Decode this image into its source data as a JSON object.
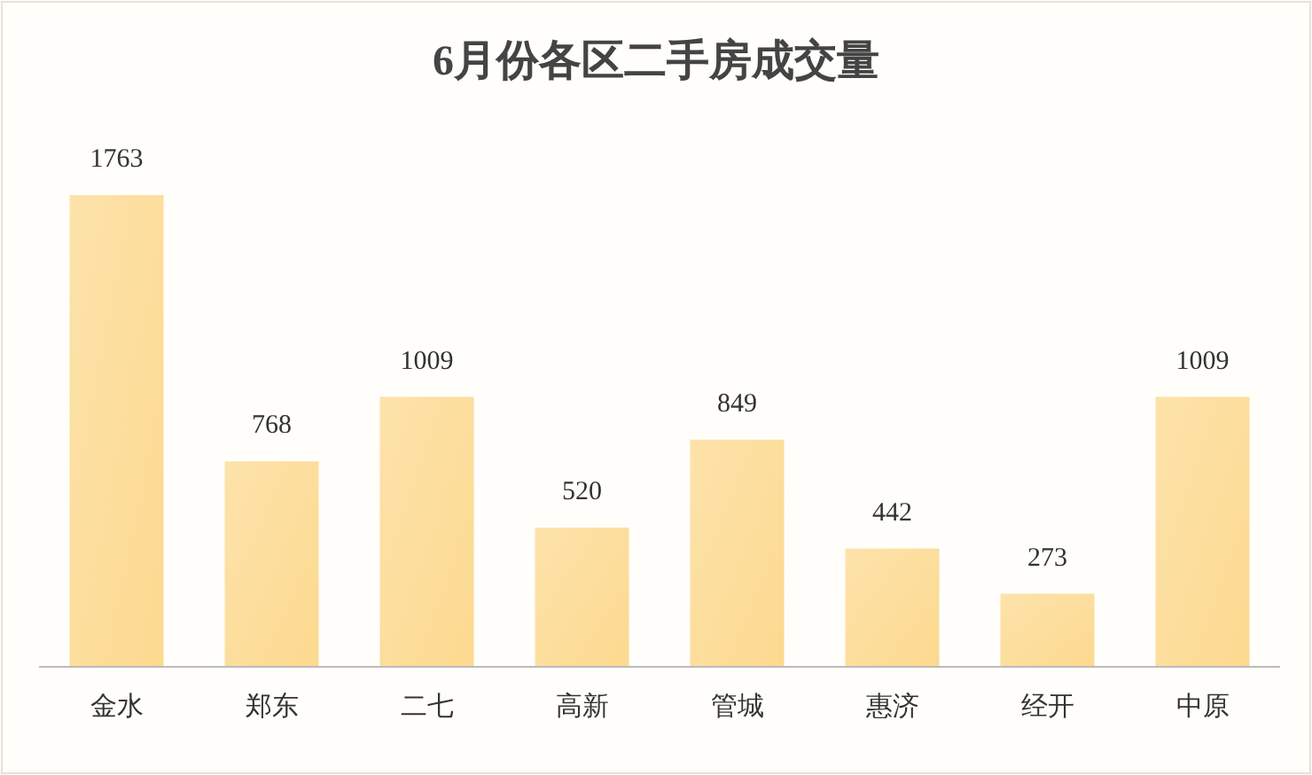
{
  "chart_data": {
    "type": "bar",
    "title": "6月份各区二手房成交量",
    "categories": [
      "金水",
      "郑东",
      "二七",
      "高新",
      "管城",
      "惠济",
      "经开",
      "中原"
    ],
    "values": [
      1763,
      768,
      1009,
      520,
      849,
      442,
      273,
      1009
    ],
    "color": "#fcd98f",
    "data_labels": true
  }
}
